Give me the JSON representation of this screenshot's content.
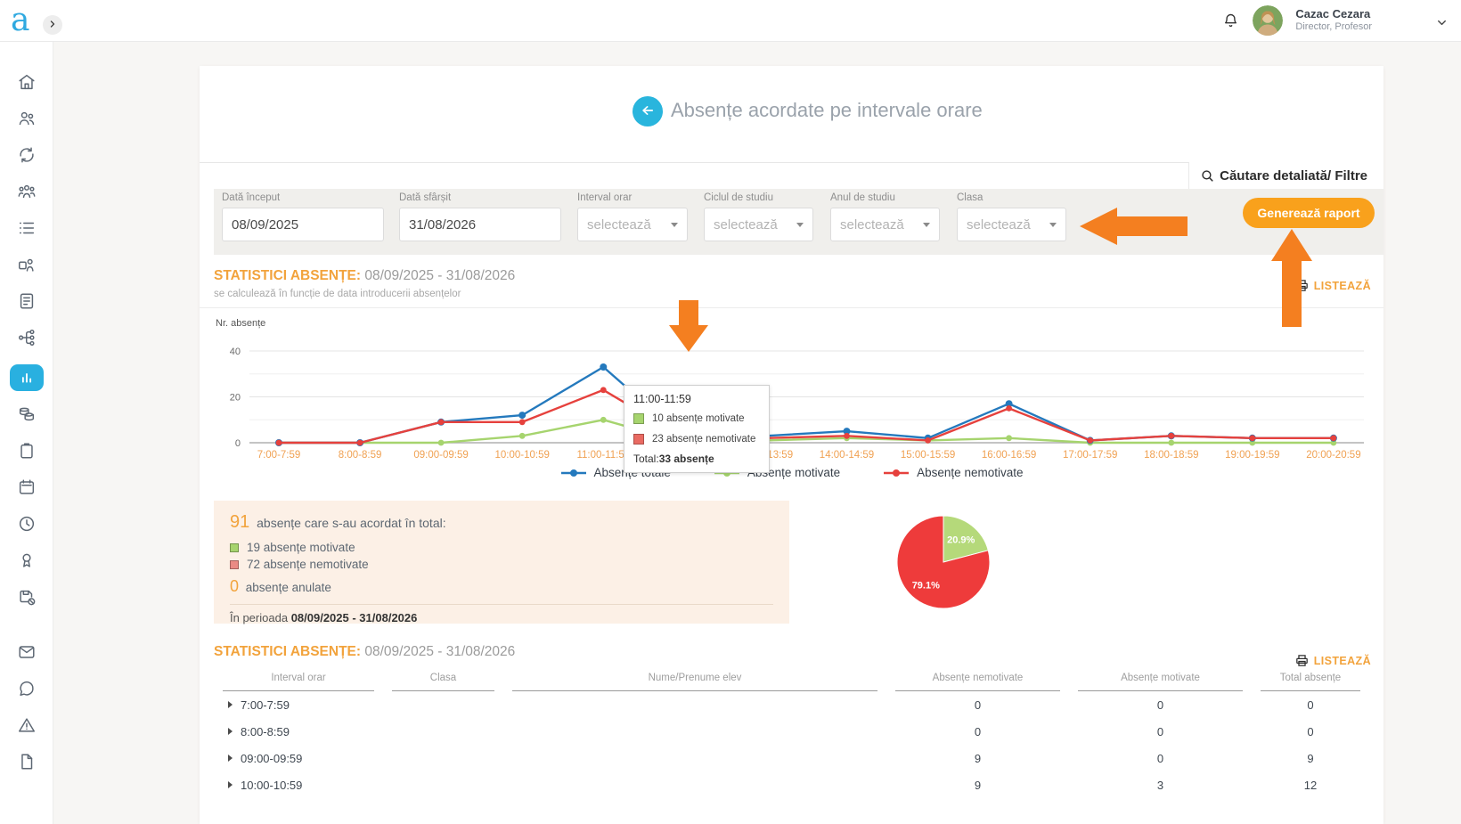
{
  "brand": {
    "accent_cyan": "#29b0e0",
    "accent_orange": "#f2a33c",
    "button_orange": "#f9a11c",
    "annotation_orange": "#f47f20"
  },
  "header": {
    "logo": "a",
    "user_name": "Cazac Cezara",
    "user_role": "Director, Profesor"
  },
  "sidebar": {
    "items": [
      {
        "icon": "home-icon"
      },
      {
        "icon": "students-icon"
      },
      {
        "icon": "transfer-icon"
      },
      {
        "icon": "group-icon"
      },
      {
        "icon": "list-icon"
      },
      {
        "icon": "user-badge-icon"
      },
      {
        "icon": "document-icon"
      },
      {
        "icon": "hierarchy-icon"
      },
      {
        "icon": "bar-chart-icon",
        "active": true
      },
      {
        "icon": "library-icon"
      },
      {
        "icon": "clipboard-icon"
      },
      {
        "icon": "calendar-icon"
      },
      {
        "icon": "clock-icon"
      },
      {
        "icon": "award-icon"
      },
      {
        "icon": "save-disabled-icon"
      },
      {
        "icon": "mail-icon",
        "gap_above": true
      },
      {
        "icon": "chat-icon"
      },
      {
        "icon": "warning-icon"
      },
      {
        "icon": "file-icon"
      }
    ]
  },
  "page": {
    "title": "Absențe acordate pe intervale orare",
    "search_link": "Căutare detaliată/ Filtre",
    "generate_button": "Generează raport"
  },
  "filters": [
    {
      "label": "Dată început",
      "value": "08/09/2025",
      "type": "text"
    },
    {
      "label": "Dată sfârșit",
      "value": "31/08/2026",
      "type": "text"
    },
    {
      "label": "Interval orar",
      "value": "selectează",
      "type": "select"
    },
    {
      "label": "Ciclul de studiu",
      "value": "selectează",
      "type": "select"
    },
    {
      "label": "Anul de studiu",
      "value": "selectează",
      "type": "select"
    },
    {
      "label": "Clasa",
      "value": "selectează",
      "type": "select"
    }
  ],
  "stats_section": {
    "title": "STATISTICI ABSENȚE:",
    "date_range": "08/09/2025 - 31/08/2026",
    "subtitle": "se calculează în funcție de data introducerii absențelor",
    "listeaza": "LISTEAZĂ"
  },
  "chart_data": {
    "type": "line",
    "ylabel": "Nr. absențe",
    "yticks": [
      0,
      20,
      40
    ],
    "ylim": [
      0,
      42
    ],
    "grid": "horizontal",
    "legend_position": "bottom",
    "x_tick_color": "#f0a152",
    "categories": [
      "7:00-7:59",
      "8:00-8:59",
      "09:00-09:59",
      "10:00-10:59",
      "11:00-11:59",
      "12:00-12:59",
      "13:00-13:59",
      "14:00-14:59",
      "15:00-15:59",
      "16:00-16:59",
      "17:00-17:59",
      "18:00-18:59",
      "19:00-19:59",
      "20:00-20:59"
    ],
    "series": [
      {
        "name": "Absențe totale",
        "color": "#2479bd",
        "values": [
          0,
          0,
          9,
          12,
          33,
          2,
          3,
          5,
          2,
          17,
          1,
          3,
          2,
          2
        ]
      },
      {
        "name": "Absențe motivate",
        "color": "#a6d46e",
        "values": [
          0,
          0,
          0,
          3,
          10,
          0,
          1,
          2,
          1,
          2,
          0,
          0,
          0,
          0
        ]
      },
      {
        "name": "Absențe nemotivate",
        "color": "#e6413d",
        "values": [
          0,
          0,
          9,
          9,
          23,
          2,
          2,
          3,
          1,
          15,
          1,
          3,
          2,
          2
        ]
      }
    ]
  },
  "tooltip": {
    "title": "11:00-11:59",
    "motivate_text": "10 absențe motivate",
    "nemotivate_text": "23 absențe nemotivate",
    "total_label": "Total:",
    "total_value": "33 absențe",
    "motivate_color": "#a6d46e",
    "nemotivate_color": "#e96a62"
  },
  "summary": {
    "total_count": "91",
    "total_text": "absențe care s-au acordat în total:",
    "motivate_text": "19 absențe motivate",
    "motivate_color": "#a6d46e",
    "nemotivate_text": "72 absențe nemotivate",
    "nemotivate_color": "#ea8a84",
    "anulate_count": "0",
    "anulate_text": "absențe anulate",
    "period_label": "În perioada",
    "period_value": "08/09/2025 - 31/08/2026"
  },
  "pie_chart": {
    "type": "pie",
    "slices": [
      {
        "name": "absențe motivate",
        "label": "20.9%",
        "value": 20.9,
        "color": "#b5d97a"
      },
      {
        "name": "absențe nemotivate",
        "label": "79.1%",
        "value": 79.1,
        "color": "#ee3b3b"
      }
    ]
  },
  "table_section": {
    "title": "STATISTICI ABSENȚE:",
    "date_range": "08/09/2025 - 31/08/2026",
    "listeaza": "LISTEAZĂ",
    "headers": [
      "Interval orar",
      "Clasa",
      "Nume/Prenume elev",
      "Absențe nemotivate",
      "Absențe motivate",
      "Total absențe"
    ],
    "rows": [
      {
        "interval": "7:00-7:59",
        "clasa": "",
        "nume": "",
        "nemotivate": "0",
        "motivate": "0",
        "total": "0"
      },
      {
        "interval": "8:00-8:59",
        "clasa": "",
        "nume": "",
        "nemotivate": "0",
        "motivate": "0",
        "total": "0"
      },
      {
        "interval": "09:00-09:59",
        "clasa": "",
        "nume": "",
        "nemotivate": "9",
        "motivate": "0",
        "total": "9"
      },
      {
        "interval": "10:00-10:59",
        "clasa": "",
        "nume": "",
        "nemotivate": "9",
        "motivate": "3",
        "total": "12"
      }
    ]
  }
}
